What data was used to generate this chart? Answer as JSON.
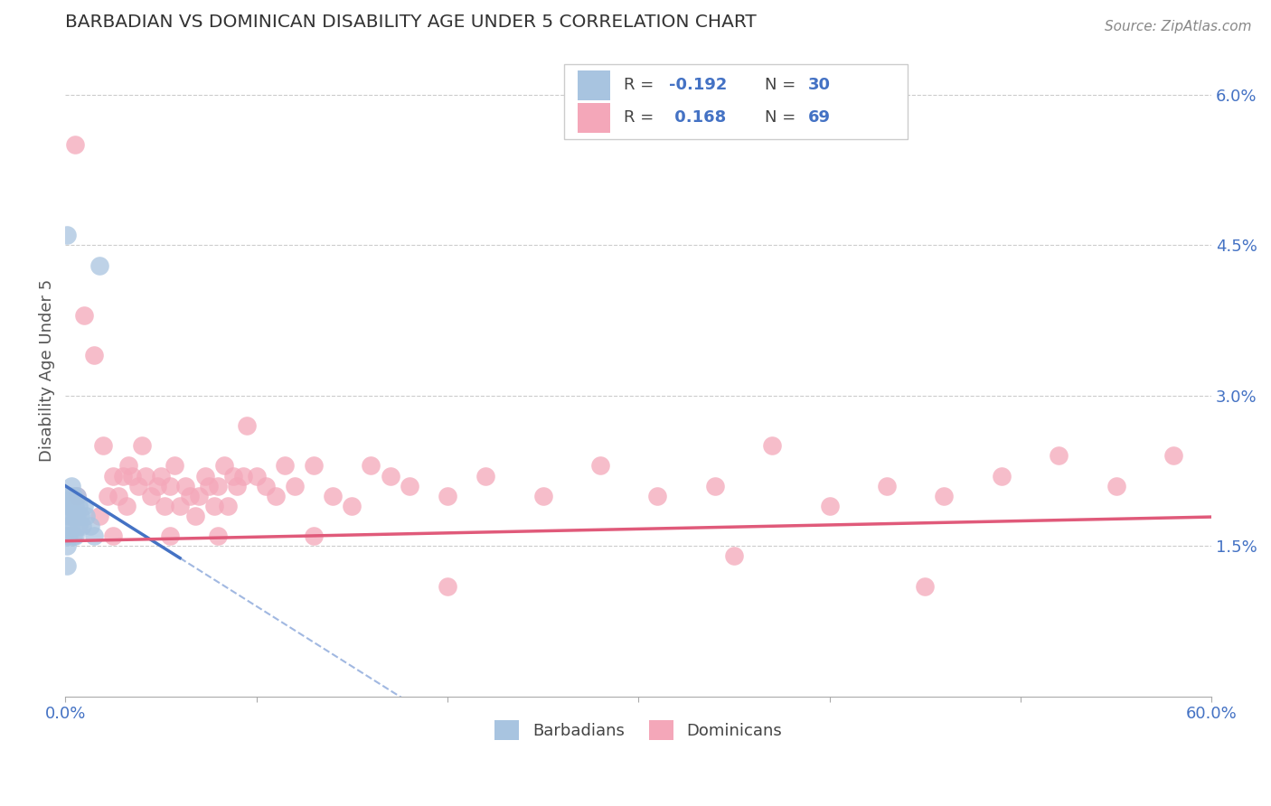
{
  "title": "BARBADIAN VS DOMINICAN DISABILITY AGE UNDER 5 CORRELATION CHART",
  "source": "Source: ZipAtlas.com",
  "ylabel": "Disability Age Under 5",
  "xlim": [
    0.0,
    0.6
  ],
  "ylim": [
    0.0,
    0.065
  ],
  "barbadian_color": "#a8c4e0",
  "dominican_color": "#f4a7b9",
  "barbadian_line_color": "#4472c4",
  "dominican_line_color": "#e05a7a",
  "grid_color": "#cccccc",
  "background_color": "#ffffff",
  "title_color": "#333333",
  "axis_label_color": "#555555",
  "barbadian_x": [
    0.001,
    0.001,
    0.001,
    0.001,
    0.001,
    0.002,
    0.002,
    0.002,
    0.002,
    0.003,
    0.003,
    0.003,
    0.004,
    0.004,
    0.004,
    0.005,
    0.005,
    0.005,
    0.006,
    0.006,
    0.007,
    0.007,
    0.008,
    0.009,
    0.01,
    0.011,
    0.013,
    0.015,
    0.018,
    0.001
  ],
  "barbadian_y": [
    0.0195,
    0.017,
    0.016,
    0.015,
    0.013,
    0.02,
    0.019,
    0.018,
    0.016,
    0.021,
    0.019,
    0.017,
    0.02,
    0.018,
    0.016,
    0.019,
    0.018,
    0.016,
    0.02,
    0.018,
    0.019,
    0.017,
    0.018,
    0.017,
    0.019,
    0.018,
    0.017,
    0.016,
    0.043,
    0.046
  ],
  "dominican_x": [
    0.006,
    0.01,
    0.015,
    0.018,
    0.02,
    0.022,
    0.025,
    0.028,
    0.03,
    0.032,
    0.033,
    0.035,
    0.038,
    0.04,
    0.042,
    0.045,
    0.048,
    0.05,
    0.052,
    0.055,
    0.057,
    0.06,
    0.063,
    0.065,
    0.068,
    0.07,
    0.073,
    0.075,
    0.078,
    0.08,
    0.083,
    0.085,
    0.088,
    0.09,
    0.093,
    0.095,
    0.1,
    0.105,
    0.11,
    0.115,
    0.12,
    0.13,
    0.14,
    0.15,
    0.16,
    0.17,
    0.18,
    0.2,
    0.22,
    0.25,
    0.28,
    0.31,
    0.34,
    0.37,
    0.4,
    0.43,
    0.46,
    0.49,
    0.52,
    0.55,
    0.58,
    0.025,
    0.055,
    0.08,
    0.13,
    0.2,
    0.35,
    0.45,
    0.005
  ],
  "dominican_y": [
    0.02,
    0.038,
    0.034,
    0.018,
    0.025,
    0.02,
    0.022,
    0.02,
    0.022,
    0.019,
    0.023,
    0.022,
    0.021,
    0.025,
    0.022,
    0.02,
    0.021,
    0.022,
    0.019,
    0.021,
    0.023,
    0.019,
    0.021,
    0.02,
    0.018,
    0.02,
    0.022,
    0.021,
    0.019,
    0.021,
    0.023,
    0.019,
    0.022,
    0.021,
    0.022,
    0.027,
    0.022,
    0.021,
    0.02,
    0.023,
    0.021,
    0.023,
    0.02,
    0.019,
    0.023,
    0.022,
    0.021,
    0.02,
    0.022,
    0.02,
    0.023,
    0.02,
    0.021,
    0.025,
    0.019,
    0.021,
    0.02,
    0.022,
    0.024,
    0.021,
    0.024,
    0.016,
    0.016,
    0.016,
    0.016,
    0.011,
    0.014,
    0.011,
    0.055
  ],
  "barb_line_x0": 0.0,
  "barb_line_x1": 0.06,
  "barb_line_x2": 0.55,
  "barb_slope": -0.12,
  "barb_intercept": 0.021,
  "dom_line_x0": 0.0,
  "dom_line_x1": 0.6,
  "dom_slope": 0.004,
  "dom_intercept": 0.0155
}
